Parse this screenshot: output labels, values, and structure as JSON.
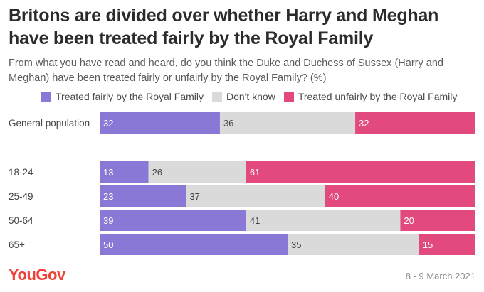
{
  "title": "Britons are divided over whether Harry and Meghan have been treated fairly by the Royal Family",
  "subtitle": "From what you have read and heard, do you think the Duke and Duchess of Sussex (Harry and Meghan) have been treated fairly or unfairly by the Royal Family? (%)",
  "footer": {
    "logo": "YouGov",
    "date": "8 - 9 March 2021"
  },
  "chart_data": {
    "type": "bar",
    "orientation": "horizontal",
    "stacked": true,
    "unit": "%",
    "xlim": [
      0,
      100
    ],
    "grid": false,
    "legend_position": "top",
    "categories": [
      "General population",
      "18-24",
      "25-49",
      "50-64",
      "65+"
    ],
    "series": [
      {
        "name": "Treated fairly by the Royal Family",
        "color": "#8b78d6",
        "values": [
          32,
          13,
          23,
          39,
          50
        ]
      },
      {
        "name": "Don't know",
        "color": "#dadada",
        "values": [
          36,
          26,
          37,
          41,
          35
        ]
      },
      {
        "name": "Treated unfairly by the Royal Family",
        "color": "#e2497e",
        "values": [
          32,
          61,
          40,
          20,
          15
        ]
      }
    ]
  }
}
